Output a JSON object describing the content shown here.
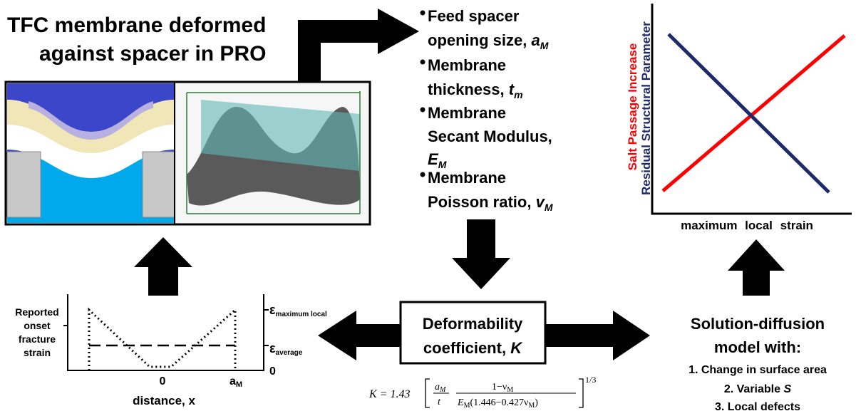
{
  "title": [
    "TFC membrane deformed",
    "against spacer in PRO"
  ],
  "parameters": [
    {
      "lines": [
        "Feed spacer",
        "opening size,"
      ],
      "symbol": "a",
      "subscript": "M"
    },
    {
      "lines": [
        "Membrane",
        "thickness,"
      ],
      "symbol": "t",
      "subscript": "m"
    },
    {
      "lines": [
        "Membrane",
        "Secant Modulus,"
      ],
      "symbol": "E",
      "subscript": "M"
    },
    {
      "lines": [
        "Membrane",
        "Poisson ratio,"
      ],
      "symbol": "v",
      "subscript": "M"
    }
  ],
  "trend_chart": {
    "series": [
      "Salt Passage Increase",
      "Residual Structural Parameter"
    ],
    "x_label": "maximum local strain"
  },
  "strain_chart": {
    "left_label": [
      "Reported",
      "onset",
      "fracture",
      "strain"
    ],
    "right_labels": [
      {
        "symbol": "ε",
        "subscript": "maximum local"
      },
      {
        "symbol": "ε",
        "subscript": "average"
      }
    ],
    "right_zero": "0",
    "x_origin": "0",
    "x_end": {
      "symbol": "a",
      "subscript": "M"
    },
    "x_label": "distance, x"
  },
  "center": {
    "lines": [
      "Deformability",
      "coefficient,"
    ],
    "symbol": "K"
  },
  "model": {
    "title": [
      "Solution-diffusion",
      "model with:"
    ],
    "items": [
      "1. Change in surface area",
      {
        "text": "2. Variable",
        "symbol": "S"
      },
      "3. Local defects"
    ]
  },
  "formula": {
    "prefix": "K = 1.43",
    "num1": [
      "a",
      "M"
    ],
    "den1": "t",
    "num2": [
      "1−ν",
      "M"
    ],
    "den2": [
      "E",
      "M",
      "(1.446−0.427ν",
      "M",
      ")"
    ],
    "exponent": "1/3"
  }
}
